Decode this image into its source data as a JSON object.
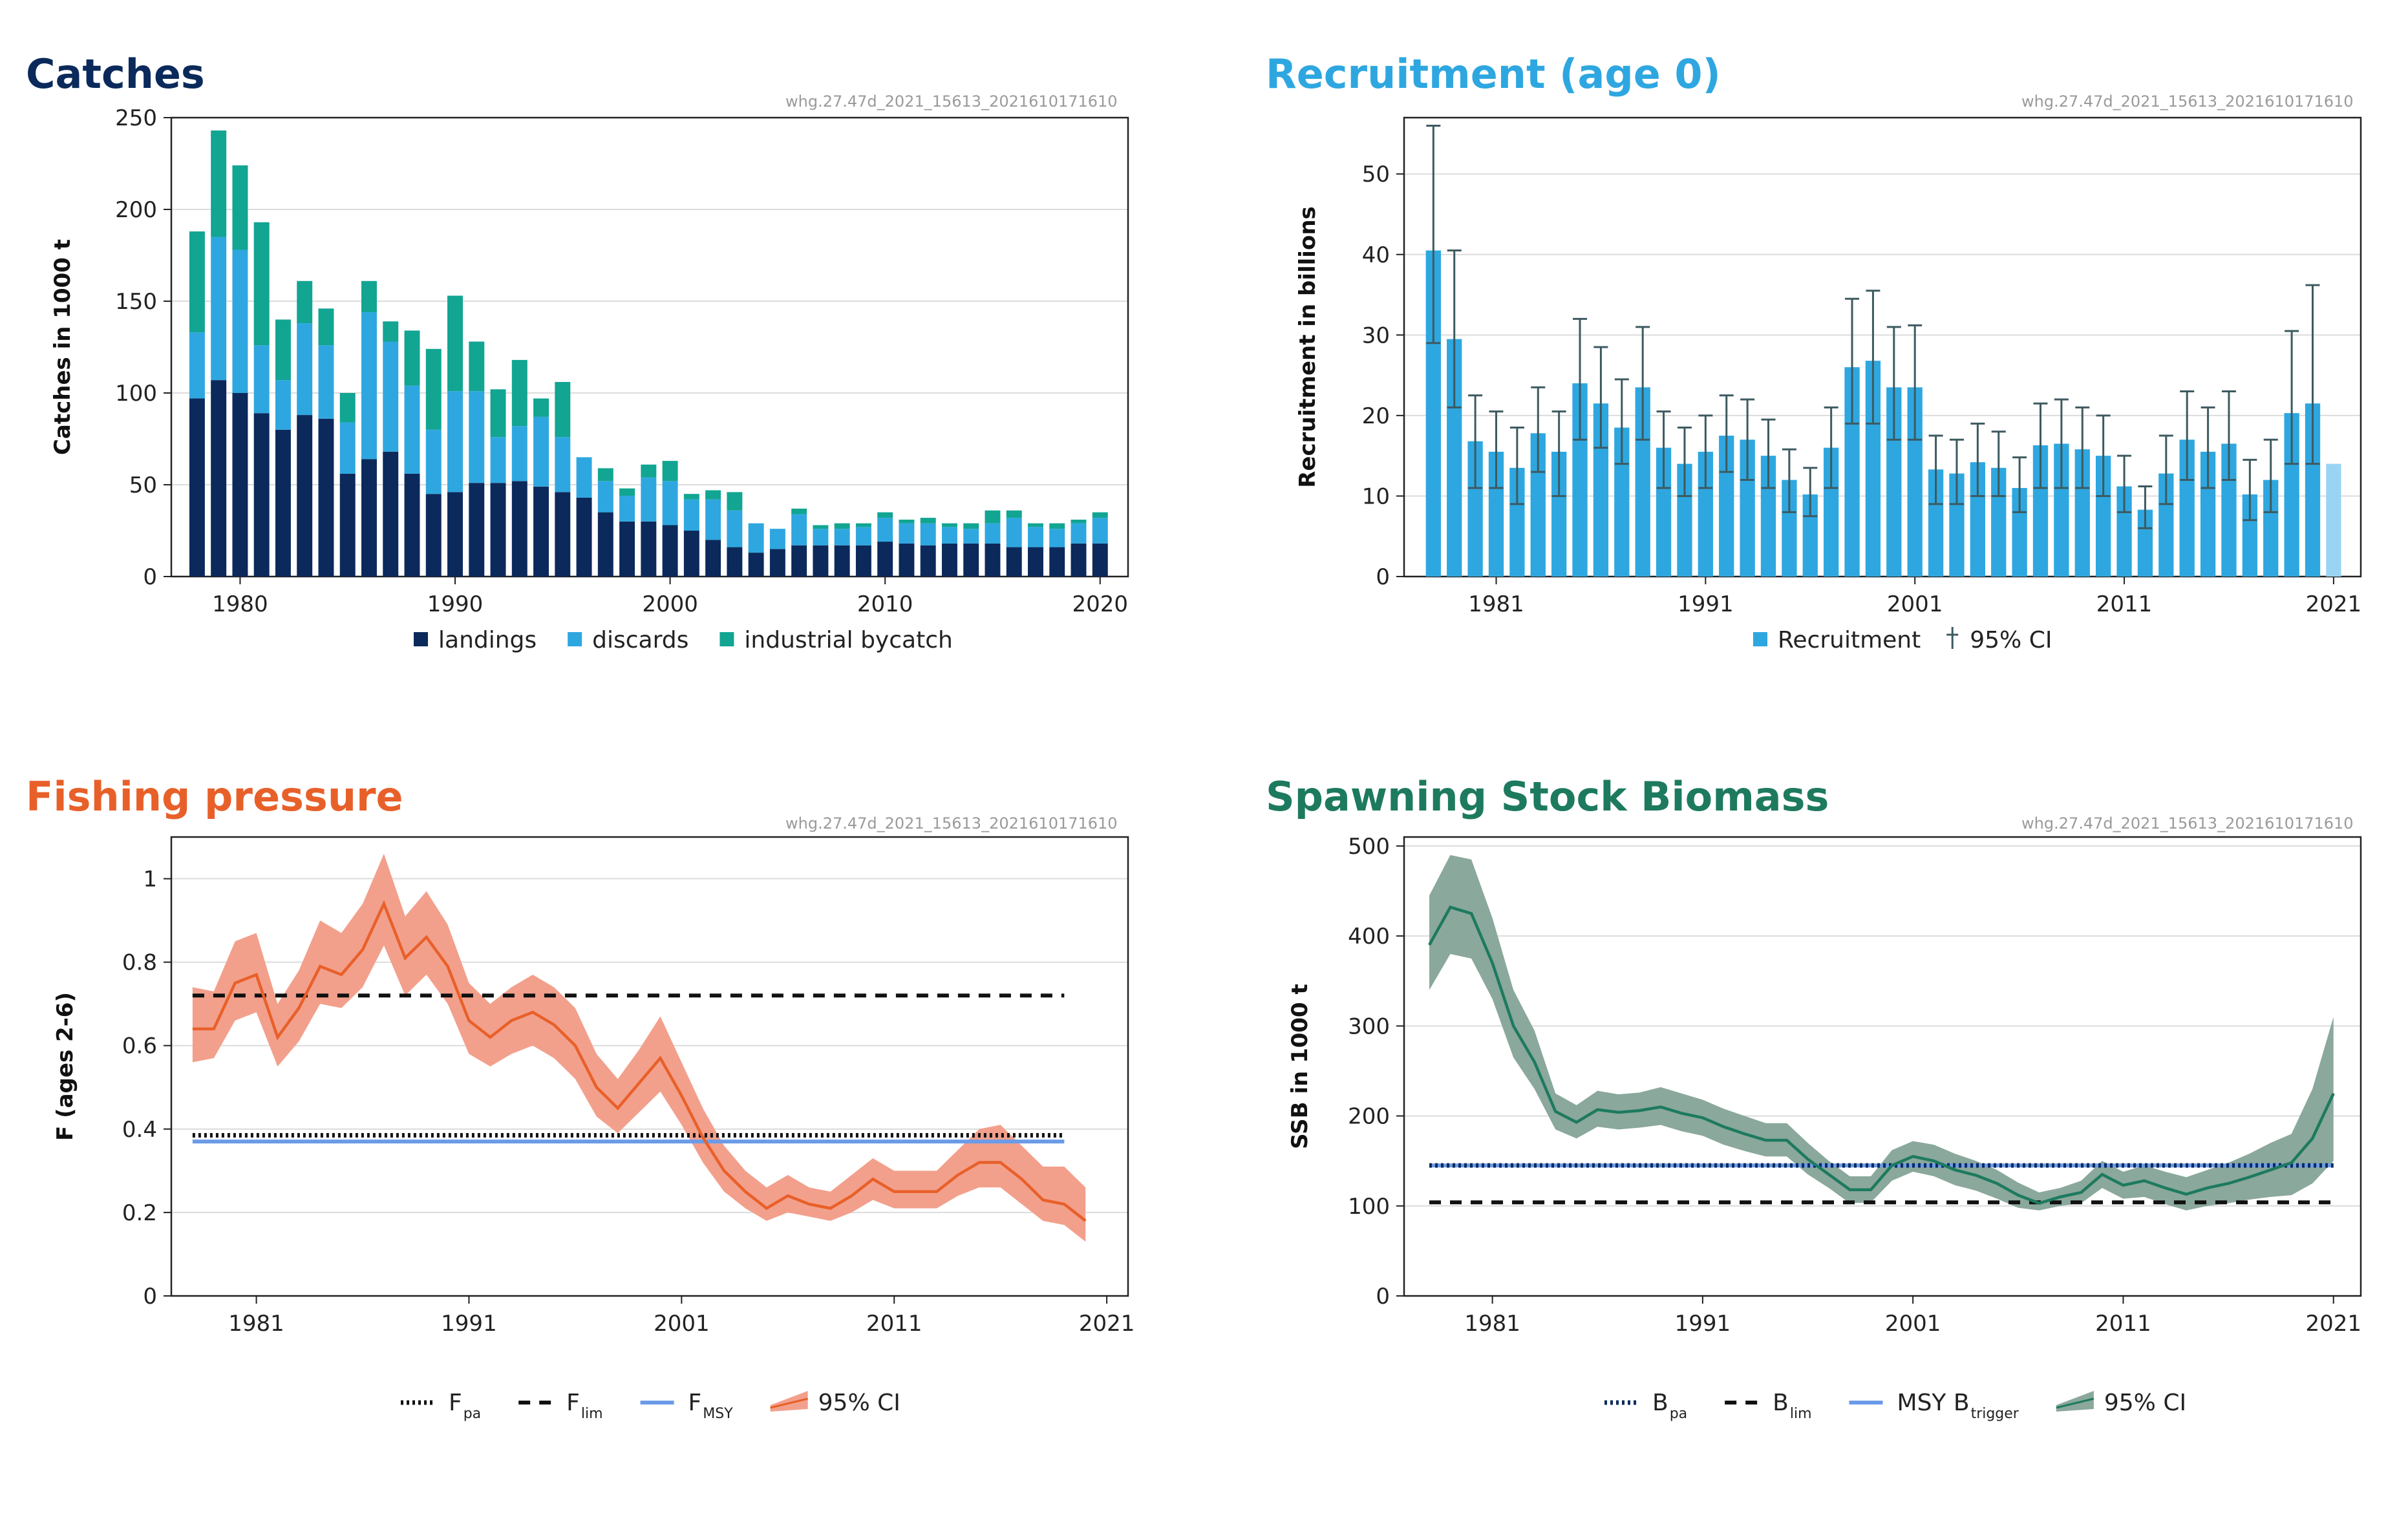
{
  "colors": {
    "navy": "#0b2a5b",
    "sky": "#2ea7e0",
    "teal": "#11a592",
    "orange": "#e86029",
    "ci_orange": "#f2a08c",
    "green": "#1d7a5f",
    "ci_green": "#8aa89b",
    "msy_blue": "#6b9be8",
    "rec_light": "#9bd4f3",
    "grid": "#dcdcdc"
  },
  "stock_id": "whg.27.47d_2021_15613_2021610171610",
  "charts": [
    {
      "panel": "catches",
      "title": "Catches",
      "type": "bar",
      "ylabel": "Catches in 1000 t",
      "ylim": [
        0,
        250
      ],
      "yticks": [
        0,
        50,
        100,
        150,
        200,
        250
      ],
      "xlim": [
        1976.8,
        2021.3
      ],
      "xticks": [
        1980,
        1990,
        2000,
        2010,
        2020
      ],
      "years": [
        1978,
        1979,
        1980,
        1981,
        1982,
        1983,
        1984,
        1985,
        1986,
        1987,
        1988,
        1989,
        1990,
        1991,
        1992,
        1993,
        1994,
        1995,
        1996,
        1997,
        1998,
        1999,
        2000,
        2001,
        2002,
        2003,
        2004,
        2005,
        2006,
        2007,
        2008,
        2009,
        2010,
        2011,
        2012,
        2013,
        2014,
        2015,
        2016,
        2017,
        2018,
        2019,
        2020
      ],
      "series": [
        {
          "name": "landings",
          "key": "navy",
          "values": [
            97,
            107,
            100,
            89,
            80,
            88,
            86,
            56,
            64,
            68,
            56,
            45,
            46,
            51,
            51,
            52,
            49,
            46,
            43,
            35,
            30,
            30,
            28,
            25,
            20,
            16,
            13,
            15,
            17,
            17,
            17,
            17,
            19,
            18,
            17,
            18,
            18,
            18,
            16,
            16,
            16,
            18,
            18
          ]
        },
        {
          "name": "discards",
          "key": "sky",
          "values": [
            36,
            78,
            78,
            37,
            27,
            50,
            40,
            28,
            80,
            60,
            48,
            35,
            55,
            50,
            25,
            30,
            38,
            30,
            22,
            17,
            14,
            24,
            24,
            17,
            22,
            20,
            16,
            11,
            17,
            9,
            9,
            10,
            13,
            11,
            12,
            9,
            8,
            11,
            16,
            11,
            10,
            11,
            14
          ]
        },
        {
          "name": "industrial bycatch",
          "key": "teal",
          "values": [
            55,
            58,
            46,
            67,
            33,
            23,
            20,
            16,
            17,
            11,
            30,
            44,
            52,
            27,
            26,
            36,
            10,
            30,
            0,
            7,
            4,
            7,
            11,
            3,
            5,
            10,
            0,
            0,
            3,
            2,
            3,
            2,
            3,
            2,
            3,
            2,
            3,
            7,
            4,
            2,
            3,
            2,
            3
          ]
        }
      ],
      "legend": [
        {
          "label": "landings",
          "key": "navy"
        },
        {
          "label": "discards",
          "key": "sky"
        },
        {
          "label": "industrial bycatch",
          "key": "teal"
        }
      ]
    },
    {
      "panel": "recruitment",
      "title": "Recruitment (age 0)",
      "type": "bar",
      "ylabel": "Recruitment in billions",
      "ylim": [
        0,
        57
      ],
      "yticks": [
        0,
        10,
        20,
        30,
        40,
        50
      ],
      "xlim": [
        1976.6,
        2022.3
      ],
      "xticks": [
        1981,
        1991,
        2001,
        2011,
        2021
      ],
      "years": [
        1978,
        1979,
        1980,
        1981,
        1982,
        1983,
        1984,
        1985,
        1986,
        1987,
        1988,
        1989,
        1990,
        1991,
        1992,
        1993,
        1994,
        1995,
        1996,
        1997,
        1998,
        1999,
        2000,
        2001,
        2002,
        2003,
        2004,
        2005,
        2006,
        2007,
        2008,
        2009,
        2010,
        2011,
        2012,
        2013,
        2014,
        2015,
        2016,
        2017,
        2018,
        2019,
        2020,
        2021
      ],
      "values": [
        40.5,
        29.5,
        16.8,
        15.5,
        13.5,
        17.8,
        15.5,
        24.0,
        21.5,
        18.5,
        23.5,
        16.0,
        14.0,
        15.5,
        17.5,
        17.0,
        15.0,
        12.0,
        10.2,
        16.0,
        26.0,
        26.8,
        23.5,
        23.5,
        13.3,
        12.8,
        14.2,
        13.5,
        11.0,
        16.3,
        16.5,
        15.8,
        15.0,
        11.2,
        8.3,
        12.8,
        17.0,
        15.5,
        16.5,
        10.2,
        12.0,
        20.3,
        21.5,
        14.0
      ],
      "ci_low": [
        29,
        21,
        11,
        11,
        9,
        13,
        10,
        17,
        16,
        14,
        17,
        11,
        10,
        11,
        13,
        12,
        11,
        8,
        7.5,
        11,
        19,
        19,
        17,
        17,
        9,
        9,
        10,
        10,
        8,
        11,
        11,
        11,
        10,
        8,
        6,
        9,
        12,
        11,
        12,
        7,
        8,
        14,
        14
      ],
      "ci_high": [
        56,
        40.5,
        22.5,
        20.5,
        18.5,
        23.5,
        20.5,
        32,
        28.5,
        24.5,
        31,
        20.5,
        18.5,
        20,
        22.5,
        22,
        19.5,
        15.8,
        13.5,
        21,
        34.5,
        35.5,
        31,
        31.2,
        17.5,
        17,
        19,
        18,
        14.8,
        21.5,
        22,
        21,
        20,
        15,
        11.2,
        17.5,
        23,
        21,
        23,
        14.5,
        17,
        30.5,
        36.2
      ],
      "legend": [
        {
          "label": "Recruitment",
          "marker": "square",
          "key": "sky"
        },
        {
          "label": "95% CI",
          "marker": "errbar",
          "key": "ci"
        }
      ]
    },
    {
      "panel": "fishing",
      "title": "Fishing pressure",
      "type": "line",
      "ylabel": "F (ages 2-6)",
      "ylim": [
        0,
        1.1
      ],
      "yticks": [
        0,
        0.2,
        0.4,
        0.6,
        0.8,
        1
      ],
      "ytick_labels": [
        "0",
        "0.2",
        "0.4",
        "0.6",
        "0.8",
        "1"
      ],
      "xlim": [
        1977,
        2022
      ],
      "xticks": [
        1981,
        1991,
        2001,
        2011,
        2021
      ],
      "years": [
        1978,
        1979,
        1980,
        1981,
        1982,
        1983,
        1984,
        1985,
        1986,
        1987,
        1988,
        1989,
        1990,
        1991,
        1992,
        1993,
        1994,
        1995,
        1996,
        1997,
        1998,
        1999,
        2000,
        2001,
        2002,
        2003,
        2004,
        2005,
        2006,
        2007,
        2008,
        2009,
        2010,
        2011,
        2012,
        2013,
        2014,
        2015,
        2016,
        2017,
        2018,
        2019,
        2020
      ],
      "values": [
        0.64,
        0.64,
        0.75,
        0.77,
        0.62,
        0.69,
        0.79,
        0.77,
        0.83,
        0.94,
        0.81,
        0.86,
        0.79,
        0.66,
        0.62,
        0.66,
        0.68,
        0.65,
        0.6,
        0.5,
        0.45,
        0.51,
        0.57,
        0.48,
        0.38,
        0.3,
        0.25,
        0.21,
        0.24,
        0.22,
        0.21,
        0.24,
        0.28,
        0.25,
        0.25,
        0.25,
        0.29,
        0.32,
        0.32,
        0.28,
        0.23,
        0.22,
        0.18
      ],
      "ci_low": [
        0.56,
        0.57,
        0.66,
        0.68,
        0.55,
        0.61,
        0.7,
        0.69,
        0.74,
        0.84,
        0.72,
        0.77,
        0.7,
        0.58,
        0.55,
        0.58,
        0.6,
        0.57,
        0.52,
        0.43,
        0.39,
        0.44,
        0.49,
        0.41,
        0.32,
        0.25,
        0.21,
        0.18,
        0.2,
        0.19,
        0.18,
        0.2,
        0.23,
        0.21,
        0.21,
        0.21,
        0.24,
        0.26,
        0.26,
        0.22,
        0.18,
        0.17,
        0.13
      ],
      "ci_high": [
        0.74,
        0.73,
        0.85,
        0.87,
        0.7,
        0.78,
        0.9,
        0.87,
        0.94,
        1.06,
        0.91,
        0.97,
        0.89,
        0.75,
        0.7,
        0.74,
        0.77,
        0.74,
        0.69,
        0.58,
        0.52,
        0.59,
        0.67,
        0.56,
        0.45,
        0.36,
        0.3,
        0.26,
        0.29,
        0.26,
        0.25,
        0.29,
        0.33,
        0.3,
        0.3,
        0.3,
        0.35,
        0.4,
        0.41,
        0.36,
        0.31,
        0.31,
        0.26
      ],
      "ref_lines": [
        {
          "name": "Flim",
          "value": 0.72,
          "style": "dashed"
        },
        {
          "name": "Fpa",
          "value": 0.385,
          "style": "dotted"
        },
        {
          "name": "FMSY",
          "value": 0.37,
          "style": "solid"
        }
      ],
      "ref_x": [
        1978,
        2019
      ],
      "legend": [
        {
          "text": "F",
          "sub": "pa",
          "style": "dotted"
        },
        {
          "text": "F",
          "sub": "lim",
          "style": "dashed"
        },
        {
          "text": "F",
          "sub": "MSY",
          "style": "solid"
        },
        {
          "text": "95% CI",
          "sub": "",
          "style": "ci"
        }
      ]
    },
    {
      "panel": "ssb",
      "title": "Spawning Stock Biomass",
      "type": "line",
      "ylabel": "SSB in 1000 t",
      "ylim": [
        0,
        510
      ],
      "yticks": [
        0,
        100,
        200,
        300,
        400,
        500
      ],
      "ytick_labels": [
        "0",
        "100",
        "200",
        "300",
        "400",
        "500"
      ],
      "xlim": [
        1976.8,
        2022.3
      ],
      "xticks": [
        1981,
        1991,
        2001,
        2011,
        2021
      ],
      "years": [
        1978,
        1979,
        1980,
        1981,
        1982,
        1983,
        1984,
        1985,
        1986,
        1987,
        1988,
        1989,
        1990,
        1991,
        1992,
        1993,
        1994,
        1995,
        1996,
        1997,
        1998,
        1999,
        2000,
        2001,
        2002,
        2003,
        2004,
        2005,
        2006,
        2007,
        2008,
        2009,
        2010,
        2011,
        2012,
        2013,
        2014,
        2015,
        2016,
        2017,
        2018,
        2019,
        2020,
        2021
      ],
      "values": [
        390,
        432,
        425,
        370,
        300,
        260,
        205,
        193,
        207,
        204,
        206,
        210,
        203,
        198,
        188,
        180,
        173,
        173,
        152,
        135,
        118,
        118,
        145,
        155,
        150,
        140,
        134,
        125,
        112,
        103,
        110,
        115,
        135,
        123,
        128,
        120,
        113,
        120,
        125,
        132,
        140,
        148,
        175,
        225
      ],
      "ci_low": [
        340,
        380,
        375,
        330,
        265,
        230,
        185,
        175,
        188,
        185,
        187,
        190,
        183,
        178,
        168,
        161,
        155,
        155,
        135,
        120,
        103,
        104,
        128,
        138,
        133,
        123,
        117,
        108,
        98,
        95,
        100,
        103,
        120,
        108,
        110,
        102,
        95,
        100,
        103,
        107,
        110,
        112,
        125,
        150
      ],
      "ci_high": [
        445,
        490,
        485,
        420,
        340,
        295,
        225,
        212,
        228,
        224,
        226,
        232,
        225,
        218,
        208,
        200,
        192,
        192,
        170,
        150,
        133,
        133,
        162,
        172,
        168,
        158,
        150,
        140,
        126,
        115,
        120,
        128,
        150,
        138,
        145,
        138,
        132,
        140,
        148,
        158,
        170,
        180,
        230,
        310
      ],
      "ref_lines": [
        {
          "name": "MSY Btrigger",
          "value": 145,
          "style": "solid"
        },
        {
          "name": "Bpa",
          "value": 145,
          "style": "dotted"
        },
        {
          "name": "Blim",
          "value": 104,
          "style": "dashed"
        }
      ],
      "ref_x": [
        1978,
        2021
      ],
      "legend": [
        {
          "text": "B",
          "sub": "pa",
          "style": "dotted"
        },
        {
          "text": "B",
          "sub": "lim",
          "style": "dashed"
        },
        {
          "text": "MSY B",
          "sub": "trigger",
          "style": "solid"
        },
        {
          "text": "95% CI",
          "sub": "",
          "style": "ci"
        }
      ]
    }
  ]
}
